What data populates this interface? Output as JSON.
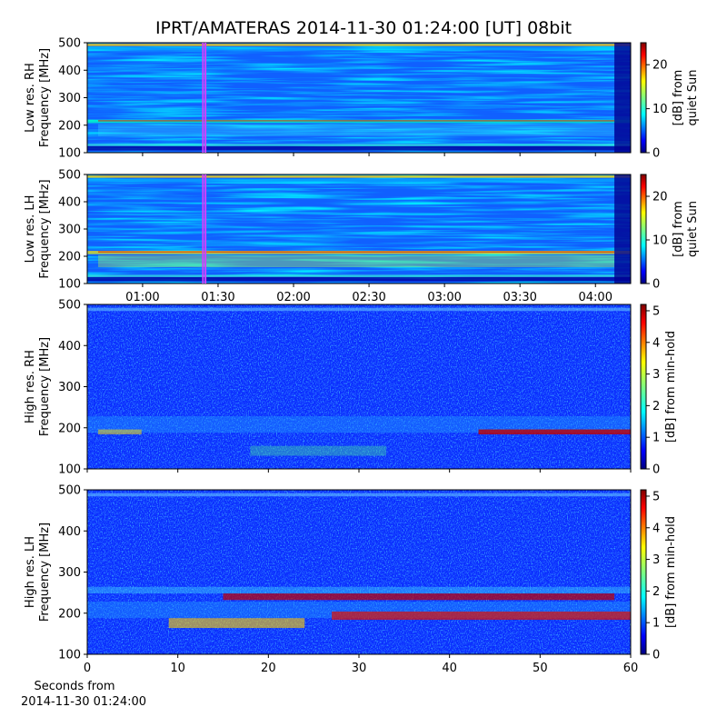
{
  "title": "IPRT/AMATERAS 2014-11-30 01:24:00 [UT]   08bit",
  "low_res_time_axis": {
    "xlim": [
      38,
      254
    ],
    "xticks": [
      {
        "value": 60,
        "label": "01:00"
      },
      {
        "value": 90,
        "label": "01:30"
      },
      {
        "value": 120,
        "label": "02:00"
      },
      {
        "value": 150,
        "label": "02:30"
      },
      {
        "value": 180,
        "label": "03:00"
      },
      {
        "value": 210,
        "label": "03:30"
      },
      {
        "value": 240,
        "label": "04:00"
      }
    ],
    "marker_span": [
      84,
      85
    ]
  },
  "high_res_time_axis": {
    "xlim": [
      0,
      60
    ],
    "xticks": [
      0,
      10,
      20,
      30,
      40,
      50,
      60
    ],
    "xlabel": [
      "Seconds from",
      "2014-11-30 01:24:00"
    ]
  },
  "chart_data": [
    {
      "type": "heatmap",
      "ylabel": [
        "Low res. RH",
        "Frequency [MHz]"
      ],
      "ylim": [
        100,
        500
      ],
      "yticks": [
        100,
        200,
        300,
        400,
        500
      ],
      "colorbar": {
        "label": [
          "[dB] from",
          "quiet Sun"
        ],
        "lim": [
          0,
          25
        ],
        "ticks": [
          0,
          10,
          20
        ]
      }
    },
    {
      "type": "heatmap",
      "ylabel": [
        "Low res. LH",
        "Frequency [MHz]"
      ],
      "ylim": [
        100,
        500
      ],
      "yticks": [
        100,
        200,
        300,
        400,
        500
      ],
      "colorbar": {
        "label": [
          "[dB] from",
          "quiet Sun"
        ],
        "lim": [
          0,
          25
        ],
        "ticks": [
          0,
          10,
          20
        ]
      }
    },
    {
      "type": "heatmap",
      "ylabel": [
        "High res. RH",
        "Frequency [MHz]"
      ],
      "ylim": [
        100,
        500
      ],
      "yticks": [
        100,
        200,
        300,
        400,
        500
      ],
      "colorbar": {
        "label": [
          "[dB] from min-hold"
        ],
        "lim": [
          0,
          5.2
        ],
        "ticks": [
          0,
          1,
          2,
          3,
          4,
          5
        ]
      }
    },
    {
      "type": "heatmap",
      "ylabel": [
        "High res. LH",
        "Frequency [MHz]"
      ],
      "ylim": [
        100,
        500
      ],
      "yticks": [
        100,
        200,
        300,
        400,
        500
      ],
      "colorbar": {
        "label": [
          "[dB] from min-hold"
        ],
        "lim": [
          0,
          5.2
        ],
        "ticks": [
          0,
          1,
          2,
          3,
          4,
          5
        ]
      }
    }
  ]
}
